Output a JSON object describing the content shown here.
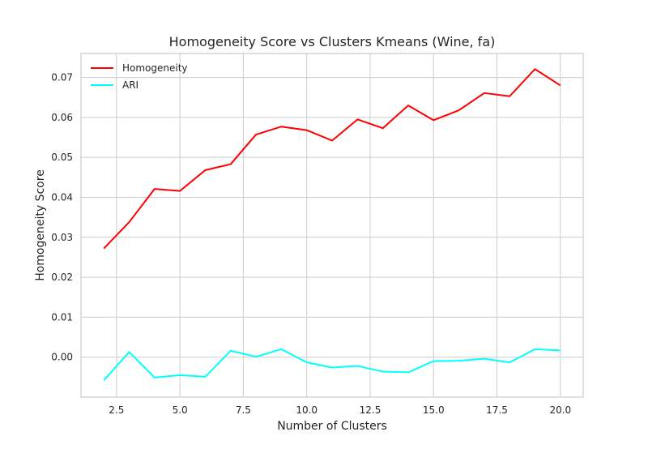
{
  "chart_data": {
    "type": "line",
    "title": "Homogeneity Score vs Clusters Kmeans (Wine, fa)",
    "xlabel": "Number of Clusters",
    "ylabel": "Homogeneity Score",
    "xlim": [
      1.1,
      20.9
    ],
    "ylim": [
      -0.01,
      0.076
    ],
    "x_ticks": [
      2.5,
      5.0,
      7.5,
      10.0,
      12.5,
      15.0,
      17.5,
      20.0
    ],
    "y_ticks": [
      0.0,
      0.01,
      0.02,
      0.03,
      0.04,
      0.05,
      0.06,
      0.07
    ],
    "x_tick_labels": [
      "2.5",
      "5.0",
      "7.5",
      "10.0",
      "12.5",
      "15.0",
      "17.5",
      "20.0"
    ],
    "y_tick_labels": [
      "0.00",
      "0.01",
      "0.02",
      "0.03",
      "0.04",
      "0.05",
      "0.06",
      "0.07"
    ],
    "grid": true,
    "legend_position": "top-left",
    "x": [
      2,
      3,
      4,
      5,
      6,
      7,
      8,
      9,
      10,
      11,
      12,
      13,
      14,
      15,
      16,
      17,
      18,
      19,
      20
    ],
    "series": [
      {
        "name": "Homogeneity",
        "color": "#ff0000",
        "values": [
          0.0272,
          0.0338,
          0.0421,
          0.0416,
          0.0468,
          0.0483,
          0.0557,
          0.0577,
          0.0568,
          0.0542,
          0.0595,
          0.0573,
          0.063,
          0.0593,
          0.0618,
          0.0661,
          0.0653,
          0.0721,
          0.068
        ]
      },
      {
        "name": "ARI",
        "color": "#00ffff",
        "values": [
          -0.0058,
          0.0013,
          -0.0051,
          -0.0045,
          -0.0049,
          0.0016,
          0.0001,
          0.002,
          -0.0013,
          -0.0026,
          -0.0022,
          -0.0036,
          -0.0038,
          -0.001,
          -0.0009,
          -0.0004,
          -0.0013,
          0.002,
          0.0017
        ]
      }
    ]
  }
}
